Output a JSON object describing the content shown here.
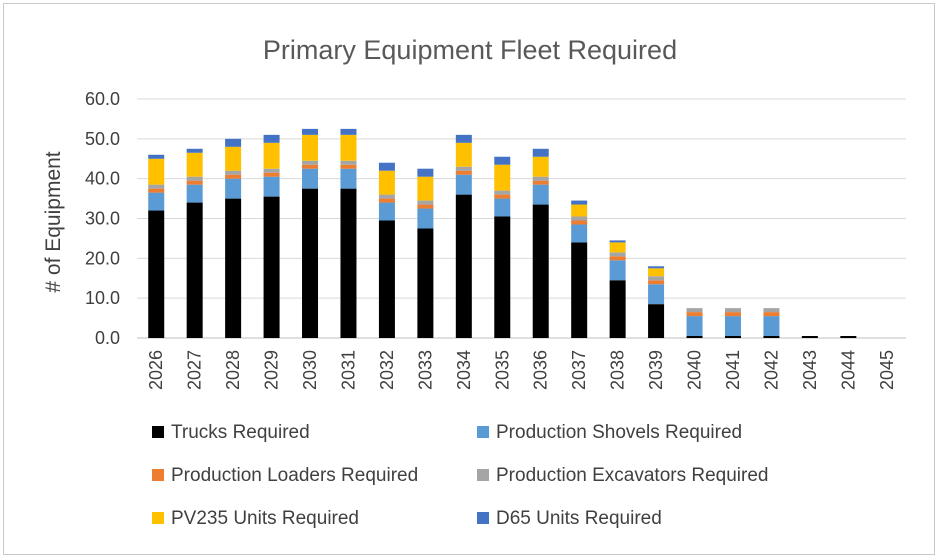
{
  "chart_data": {
    "type": "bar",
    "stacked": true,
    "title": "Primary Equipment Fleet Required",
    "xlabel": "",
    "ylabel": "# of Equipment",
    "ylim": [
      0,
      60
    ],
    "yticks": [
      "0.0",
      "10.0",
      "20.0",
      "30.0",
      "40.0",
      "50.0",
      "60.0"
    ],
    "categories": [
      "2026",
      "2027",
      "2028",
      "2029",
      "2030",
      "2031",
      "2032",
      "2033",
      "2034",
      "2035",
      "2036",
      "2037",
      "2038",
      "2039",
      "2040",
      "2041",
      "2042",
      "2043",
      "2044",
      "2045"
    ],
    "series": [
      {
        "name": "Trucks Required",
        "color": "#000000",
        "values": [
          32.0,
          34.0,
          35.0,
          35.5,
          37.5,
          37.5,
          29.5,
          27.5,
          36.0,
          30.5,
          33.5,
          24.0,
          14.5,
          8.5,
          0.5,
          0.5,
          0.5,
          0.5,
          0.5,
          0
        ]
      },
      {
        "name": "Production Shovels Required",
        "color": "#5b9bd5",
        "values": [
          4.5,
          4.5,
          5.0,
          5.0,
          5.0,
          5.0,
          4.5,
          5.0,
          5.0,
          4.5,
          5.0,
          4.5,
          5.0,
          5.0,
          5.0,
          5.0,
          5.0,
          0,
          0,
          0
        ]
      },
      {
        "name": "Production Loaders Required",
        "color": "#ed7d31",
        "values": [
          1.0,
          1.0,
          1.0,
          1.0,
          1.0,
          1.0,
          1.0,
          1.0,
          1.0,
          1.0,
          1.0,
          1.0,
          1.0,
          1.0,
          1.0,
          1.0,
          1.0,
          0,
          0,
          0
        ]
      },
      {
        "name": "Production Excavators Required",
        "color": "#a5a5a5",
        "values": [
          1.0,
          1.0,
          1.0,
          1.0,
          1.0,
          1.0,
          1.0,
          1.0,
          1.0,
          1.0,
          1.0,
          1.0,
          1.0,
          1.0,
          1.0,
          1.0,
          1.0,
          0,
          0,
          0
        ]
      },
      {
        "name": "PV235 Units Required",
        "color": "#ffc000",
        "values": [
          6.5,
          6.0,
          6.0,
          6.5,
          6.5,
          6.5,
          6.0,
          6.0,
          6.0,
          6.5,
          5.0,
          3.0,
          2.5,
          2.0,
          0,
          0,
          0,
          0,
          0,
          0
        ]
      },
      {
        "name": "D65 Units Required",
        "color": "#4472c4",
        "values": [
          1.0,
          1.0,
          2.0,
          2.0,
          1.5,
          1.5,
          2.0,
          2.0,
          2.0,
          2.0,
          2.0,
          1.0,
          0.5,
          0.5,
          0,
          0,
          0,
          0,
          0,
          0
        ]
      }
    ]
  }
}
